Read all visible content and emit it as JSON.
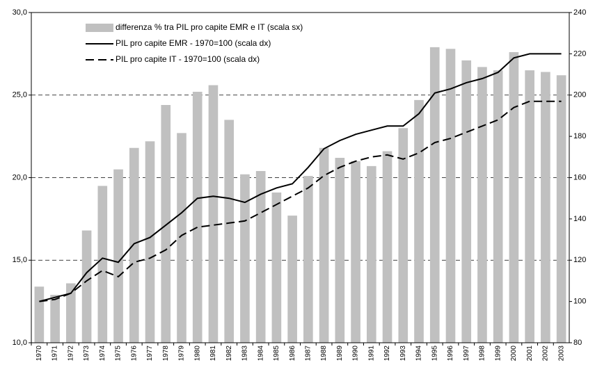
{
  "chart_data": {
    "type": "combo",
    "categories": [
      "1970",
      "1971",
      "1972",
      "1973",
      "1974",
      "1975",
      "1976",
      "1977",
      "1978",
      "1979",
      "1980",
      "1981",
      "1982",
      "1983",
      "1984",
      "1985",
      "1986",
      "1987",
      "1988",
      "1989",
      "1990",
      "1991",
      "1992",
      "1993",
      "1994",
      "1995",
      "1996",
      "1997",
      "1998",
      "1999",
      "2000",
      "2001",
      "2002",
      "2003"
    ],
    "series": [
      {
        "name": "differenza % tra PIL pro capite EMR e IT (scala sx)",
        "type": "bar",
        "axis": "y",
        "color": "#c0c0c0",
        "values": [
          13.4,
          12.9,
          13.6,
          16.8,
          19.5,
          20.5,
          21.8,
          22.2,
          24.4,
          22.7,
          25.2,
          25.6,
          23.5,
          20.2,
          20.4,
          19.1,
          17.7,
          20.1,
          21.8,
          21.2,
          21.0,
          20.7,
          21.6,
          23.0,
          24.7,
          27.9,
          27.8,
          27.1,
          26.7,
          26.5,
          27.6,
          26.5,
          26.4,
          26.2
        ]
      },
      {
        "name": "PIL pro capite EMR - 1970=100 (scala dx)",
        "type": "line",
        "axis": "y2",
        "color": "#000000",
        "line_style": "solid",
        "values": [
          100,
          102,
          104,
          114,
          121,
          119,
          128,
          131,
          137,
          143,
          150,
          151,
          150,
          148,
          152,
          155,
          157,
          165,
          174,
          178,
          181,
          183,
          185,
          185,
          191,
          201,
          203,
          206,
          208,
          211,
          218,
          220,
          220,
          220
        ]
      },
      {
        "name": "PIL pro capite IT - 1970=100 (scala dx)",
        "type": "line",
        "axis": "y2",
        "color": "#000000",
        "line_style": "dashed",
        "values": [
          100,
          101,
          104,
          110,
          115,
          112,
          119,
          121,
          125,
          132,
          136,
          137,
          138,
          139,
          143,
          147,
          151,
          155,
          161,
          165,
          168,
          170,
          171,
          169,
          172,
          177,
          179,
          182,
          185,
          188,
          194,
          197,
          197,
          197
        ]
      }
    ],
    "ylim": [
      10,
      30
    ],
    "yticks": [
      {
        "value": 10,
        "label": "10,0"
      },
      {
        "value": 15,
        "label": "15,0"
      },
      {
        "value": 20,
        "label": "20,0"
      },
      {
        "value": 25,
        "label": "25,0"
      },
      {
        "value": 30,
        "label": "30,0"
      }
    ],
    "y2lim": [
      80,
      240
    ],
    "y2ticks": [
      80,
      100,
      120,
      140,
      160,
      180,
      200,
      220,
      240
    ],
    "grid": true
  }
}
